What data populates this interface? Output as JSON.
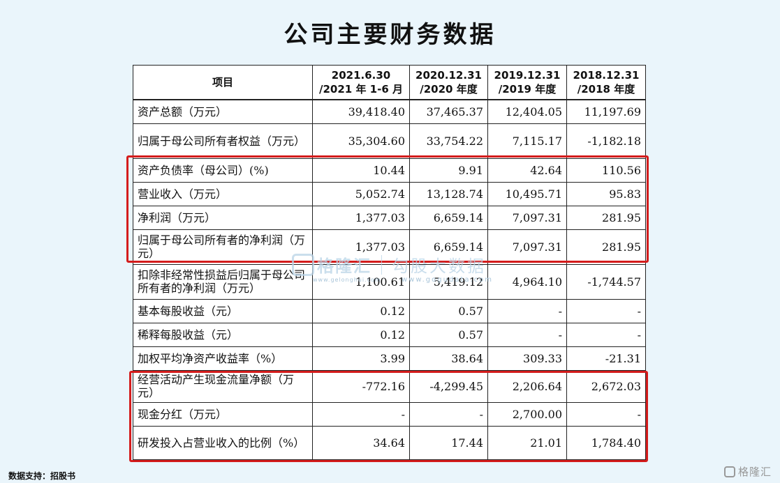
{
  "title": "公司主要财务数据",
  "table": {
    "headers": [
      {
        "line1": "项目",
        "line2": ""
      },
      {
        "line1": "2021.6.30",
        "line2": "/2021 年 1-6 月"
      },
      {
        "line1": "2020.12.31",
        "line2": "/2020 年度"
      },
      {
        "line1": "2019.12.31",
        "line2": "/2019 年度"
      },
      {
        "line1": "2018.12.31",
        "line2": "/2018 年度"
      }
    ],
    "rows": [
      {
        "label": "资产总额（万元）",
        "values": [
          "39,418.40",
          "37,465.37",
          "12,404.05",
          "11,197.69"
        ]
      },
      {
        "label": "归属于母公司所有者权益（万元）",
        "values": [
          "35,304.60",
          "33,754.22",
          "7,115.17",
          "-1,182.18"
        ]
      },
      {
        "label": "资产负债率（母公司）(%)",
        "values": [
          "10.44",
          "9.91",
          "42.64",
          "110.56"
        ]
      },
      {
        "label": "营业收入（万元）",
        "values": [
          "5,052.74",
          "13,128.74",
          "10,495.71",
          "95.83"
        ]
      },
      {
        "label": "净利润（万元）",
        "values": [
          "1,377.03",
          "6,659.14",
          "7,097.31",
          "281.95"
        ]
      },
      {
        "label": "归属于母公司所有者的净利润（万元）",
        "values": [
          "1,377.03",
          "6,659.14",
          "7,097.31",
          "281.95"
        ]
      },
      {
        "label": "扣除非经常性损益后归属于母公司所有者的净利润（万元）",
        "values": [
          "1,100.61",
          "5,419.12",
          "4,964.10",
          "-1,744.57"
        ]
      },
      {
        "label": "基本每股收益（元）",
        "values": [
          "0.12",
          "0.57",
          "-",
          "-"
        ]
      },
      {
        "label": "稀释每股收益（元）",
        "values": [
          "0.12",
          "0.57",
          "-",
          "-"
        ]
      },
      {
        "label": "加权平均净资产收益率（%）",
        "values": [
          "3.99",
          "38.64",
          "309.33",
          "-21.31"
        ]
      },
      {
        "label": "经营活动产生现金流量净额（万元）",
        "values": [
          "-772.16",
          "-4,299.45",
          "2,206.64",
          "2,672.03"
        ]
      },
      {
        "label": "现金分红（万元）",
        "values": [
          "-",
          "-",
          "2,700.00",
          "-"
        ]
      },
      {
        "label": "研发投入占营业收入的比例（%）",
        "values": [
          "34.64",
          "17.44",
          "21.01",
          "1,784.40"
        ]
      }
    ]
  },
  "highlight_color": "#d41c1c",
  "watermark": {
    "brand": "格隆汇",
    "slogan": "勾股大数据",
    "url1": "www.gelonghui.com",
    "url2": "www.gogudata.com"
  },
  "footer": {
    "source": "数据支持：招股书",
    "logo_text": "格隆汇"
  }
}
